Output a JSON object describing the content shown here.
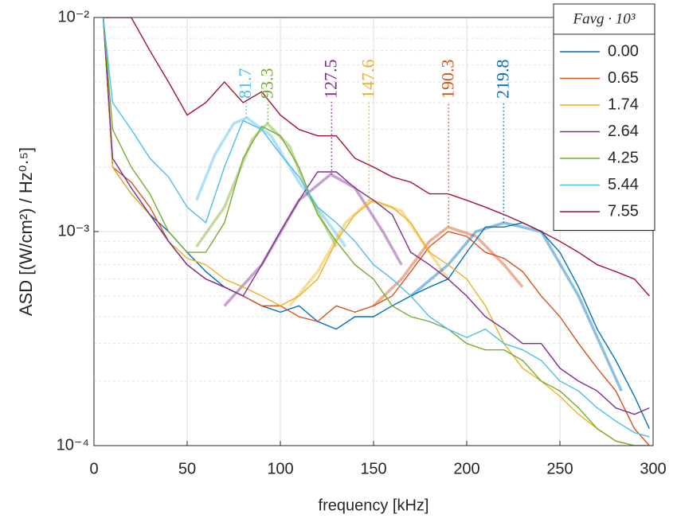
{
  "chart_data": {
    "type": "line",
    "xlabel": "frequency [kHz]",
    "ylabel": "ASD [(W/cm²) / Hz⁰·⁵]",
    "xlim": [
      0,
      300
    ],
    "xticks": [
      0,
      50,
      100,
      150,
      200,
      250,
      300
    ],
    "ylim": [
      0.0001,
      0.01
    ],
    "yticks": [
      {
        "value": 0.0001,
        "label": "10⁻⁴"
      },
      {
        "value": 0.001,
        "label": "10⁻³"
      },
      {
        "value": 0.01,
        "label": "10⁻²"
      }
    ],
    "log_y": true,
    "grid": true,
    "legend": "upper right",
    "legend_title": "Favg · 10³",
    "x": [
      5,
      10,
      20,
      30,
      40,
      50,
      60,
      70,
      80,
      90,
      100,
      110,
      120,
      130,
      140,
      150,
      160,
      170,
      180,
      190,
      200,
      210,
      220,
      230,
      240,
      250,
      260,
      270,
      280,
      290,
      298
    ],
    "series": [
      {
        "name": "0.00",
        "color": "#0072BD",
        "values": [
          0.01,
          0.002,
          0.0015,
          0.0012,
          0.001,
          0.0008,
          0.00065,
          0.00055,
          0.0005,
          0.00045,
          0.00042,
          0.00045,
          0.00038,
          0.00035,
          0.0004,
          0.0004,
          0.00045,
          0.0005,
          0.00055,
          0.0006,
          0.0008,
          0.00105,
          0.00105,
          0.0011,
          0.001,
          0.0008,
          0.00055,
          0.00035,
          0.00025,
          0.00017,
          0.00012
        ]
      },
      {
        "name": "0.65",
        "color": "#D95319",
        "values": [
          0.01,
          0.002,
          0.0017,
          0.0013,
          0.0009,
          0.0007,
          0.0006,
          0.00055,
          0.0005,
          0.00045,
          0.00045,
          0.0004,
          0.00038,
          0.00045,
          0.00042,
          0.00045,
          0.0005,
          0.00065,
          0.00085,
          0.001,
          0.00095,
          0.0008,
          0.00075,
          0.00065,
          0.0005,
          0.0004,
          0.0003,
          0.00023,
          0.00018,
          0.00012,
          0.0001
        ]
      },
      {
        "name": "1.74",
        "color": "#EDB120",
        "values": [
          0.01,
          0.002,
          0.0015,
          0.0012,
          0.0009,
          0.00075,
          0.0007,
          0.0006,
          0.00055,
          0.0005,
          0.00045,
          0.0005,
          0.0006,
          0.0009,
          0.0012,
          0.0014,
          0.0013,
          0.0011,
          0.0008,
          0.0007,
          0.0006,
          0.00045,
          0.0003,
          0.00023,
          0.0002,
          0.00017,
          0.00014,
          0.00012,
          0.000105,
          0.0001,
          0.0001
        ]
      },
      {
        "name": "2.64",
        "color": "#7E2F8E",
        "values": [
          0.01,
          0.0022,
          0.0016,
          0.0012,
          0.0009,
          0.0007,
          0.0006,
          0.00055,
          0.0005,
          0.0007,
          0.001,
          0.0014,
          0.0019,
          0.0019,
          0.0016,
          0.0014,
          0.0012,
          0.0008,
          0.0007,
          0.0006,
          0.0005,
          0.0004,
          0.00035,
          0.0003,
          0.0003,
          0.00023,
          0.0002,
          0.00018,
          0.00015,
          0.00014,
          0.00015
        ]
      },
      {
        "name": "4.25",
        "color": "#77AC30",
        "values": [
          0.01,
          0.003,
          0.002,
          0.0015,
          0.001,
          0.0008,
          0.0008,
          0.0011,
          0.0022,
          0.0031,
          0.0028,
          0.002,
          0.0012,
          0.0009,
          0.0007,
          0.0006,
          0.00045,
          0.0004,
          0.00038,
          0.00035,
          0.0003,
          0.00028,
          0.00028,
          0.00025,
          0.0002,
          0.00018,
          0.00015,
          0.00012,
          0.000105,
          0.0001,
          0.0001
        ]
      },
      {
        "name": "5.44",
        "color": "#4DBEEE",
        "values": [
          0.01,
          0.004,
          0.003,
          0.0022,
          0.0018,
          0.0013,
          0.0011,
          0.002,
          0.0033,
          0.003,
          0.0023,
          0.0018,
          0.0013,
          0.0011,
          0.0009,
          0.0007,
          0.0006,
          0.0005,
          0.0004,
          0.00035,
          0.00032,
          0.00035,
          0.0003,
          0.00028,
          0.00025,
          0.0002,
          0.00018,
          0.00015,
          0.00013,
          0.000115,
          0.00011
        ]
      },
      {
        "name": "7.55",
        "color": "#A2142F",
        "values": [
          0.01,
          0.01,
          0.01,
          0.007,
          0.005,
          0.0035,
          0.004,
          0.005,
          0.004,
          0.0045,
          0.0035,
          0.003,
          0.0028,
          0.0028,
          0.0022,
          0.002,
          0.0018,
          0.0017,
          0.0015,
          0.0015,
          0.0014,
          0.0013,
          0.0012,
          0.0011,
          0.001,
          0.0009,
          0.0008,
          0.0007,
          0.00065,
          0.0006,
          0.0005
        ]
      }
    ],
    "fits": [
      {
        "color": "#4DBEEE",
        "peak": 81.7,
        "x": [
          55,
          65,
          75,
          82,
          95,
          110,
          135
        ],
        "values": [
          0.0014,
          0.0023,
          0.0032,
          0.0034,
          0.0028,
          0.0017,
          0.00085
        ]
      },
      {
        "color": "#77AC30",
        "peak": 93.3,
        "x": [
          55,
          70,
          85,
          93,
          105,
          115,
          130
        ],
        "values": [
          0.00085,
          0.0013,
          0.0027,
          0.0032,
          0.0025,
          0.0015,
          0.00085
        ]
      },
      {
        "color": "#7E2F8E",
        "peak": 127.5,
        "x": [
          70,
          90,
          110,
          127,
          140,
          155,
          165
        ],
        "values": [
          0.00045,
          0.0007,
          0.0014,
          0.00185,
          0.0016,
          0.001,
          0.0007
        ]
      },
      {
        "color": "#EDB120",
        "peak": 147.6,
        "x": [
          105,
          120,
          135,
          148,
          165,
          180,
          190
        ],
        "values": [
          0.00045,
          0.00065,
          0.0011,
          0.0014,
          0.00125,
          0.0008,
          0.0006
        ]
      },
      {
        "color": "#D95319",
        "peak": 190.3,
        "x": [
          150,
          165,
          180,
          190,
          205,
          220,
          230
        ],
        "values": [
          0.00045,
          0.0006,
          0.0009,
          0.00105,
          0.00095,
          0.0007,
          0.00055
        ]
      },
      {
        "color": "#0072BD",
        "peak": 219.8,
        "x": [
          170,
          190,
          205,
          220,
          240,
          260,
          283
        ],
        "values": [
          0.0005,
          0.0007,
          0.001,
          0.0011,
          0.001,
          0.0005,
          0.00018
        ]
      }
    ]
  }
}
